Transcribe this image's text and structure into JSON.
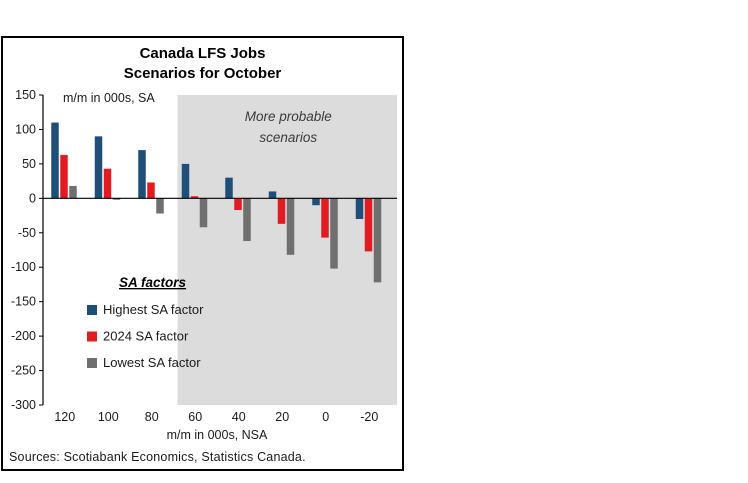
{
  "page": {
    "background": "#ffffff"
  },
  "chart": {
    "title_line1": "Canada LFS Jobs",
    "title_line2": "Scenarios for October",
    "y_axis_label": "m/m in 000s, SA",
    "x_axis_label": "m/m in 000s, NSA",
    "sources": "Sources: Scotiabank Economics, Statistics Canada."
  },
  "chart_data": {
    "type": "bar",
    "title": "Canada LFS Jobs Scenarios for October",
    "xlabel": "m/m in 000s, NSA",
    "ylabel": "m/m in 000s, SA",
    "categories": [
      "120",
      "100",
      "80",
      "60",
      "40",
      "20",
      "0",
      "-20"
    ],
    "series": [
      {
        "name": "Highest SA factor",
        "color": "#1f4e79",
        "values": [
          110,
          90,
          70,
          50,
          30,
          10,
          -10,
          -30
        ]
      },
      {
        "name": "2024 SA factor",
        "color": "#e01b22",
        "values": [
          63,
          43,
          23,
          3,
          -17,
          -37,
          -57,
          -77
        ]
      },
      {
        "name": "Lowest SA factor",
        "color": "#6f6f6f",
        "values": [
          18,
          -2,
          -22,
          -42,
          -62,
          -82,
          -102,
          -122
        ]
      }
    ],
    "ylim": [
      -300,
      150
    ],
    "y_ticks": [
      150,
      100,
      50,
      0,
      -50,
      -100,
      -150,
      -200,
      -250,
      -300
    ],
    "grid": false,
    "legend_title": "SA factors",
    "legend_position": "inside-left",
    "shaded_region": {
      "label": "More probable scenarios",
      "label_lines": [
        "More probable",
        "scenarios"
      ],
      "from_category": "60",
      "to_category": "-20",
      "color": "#dcdcdc",
      "label_color": "#3a3a3a"
    }
  }
}
